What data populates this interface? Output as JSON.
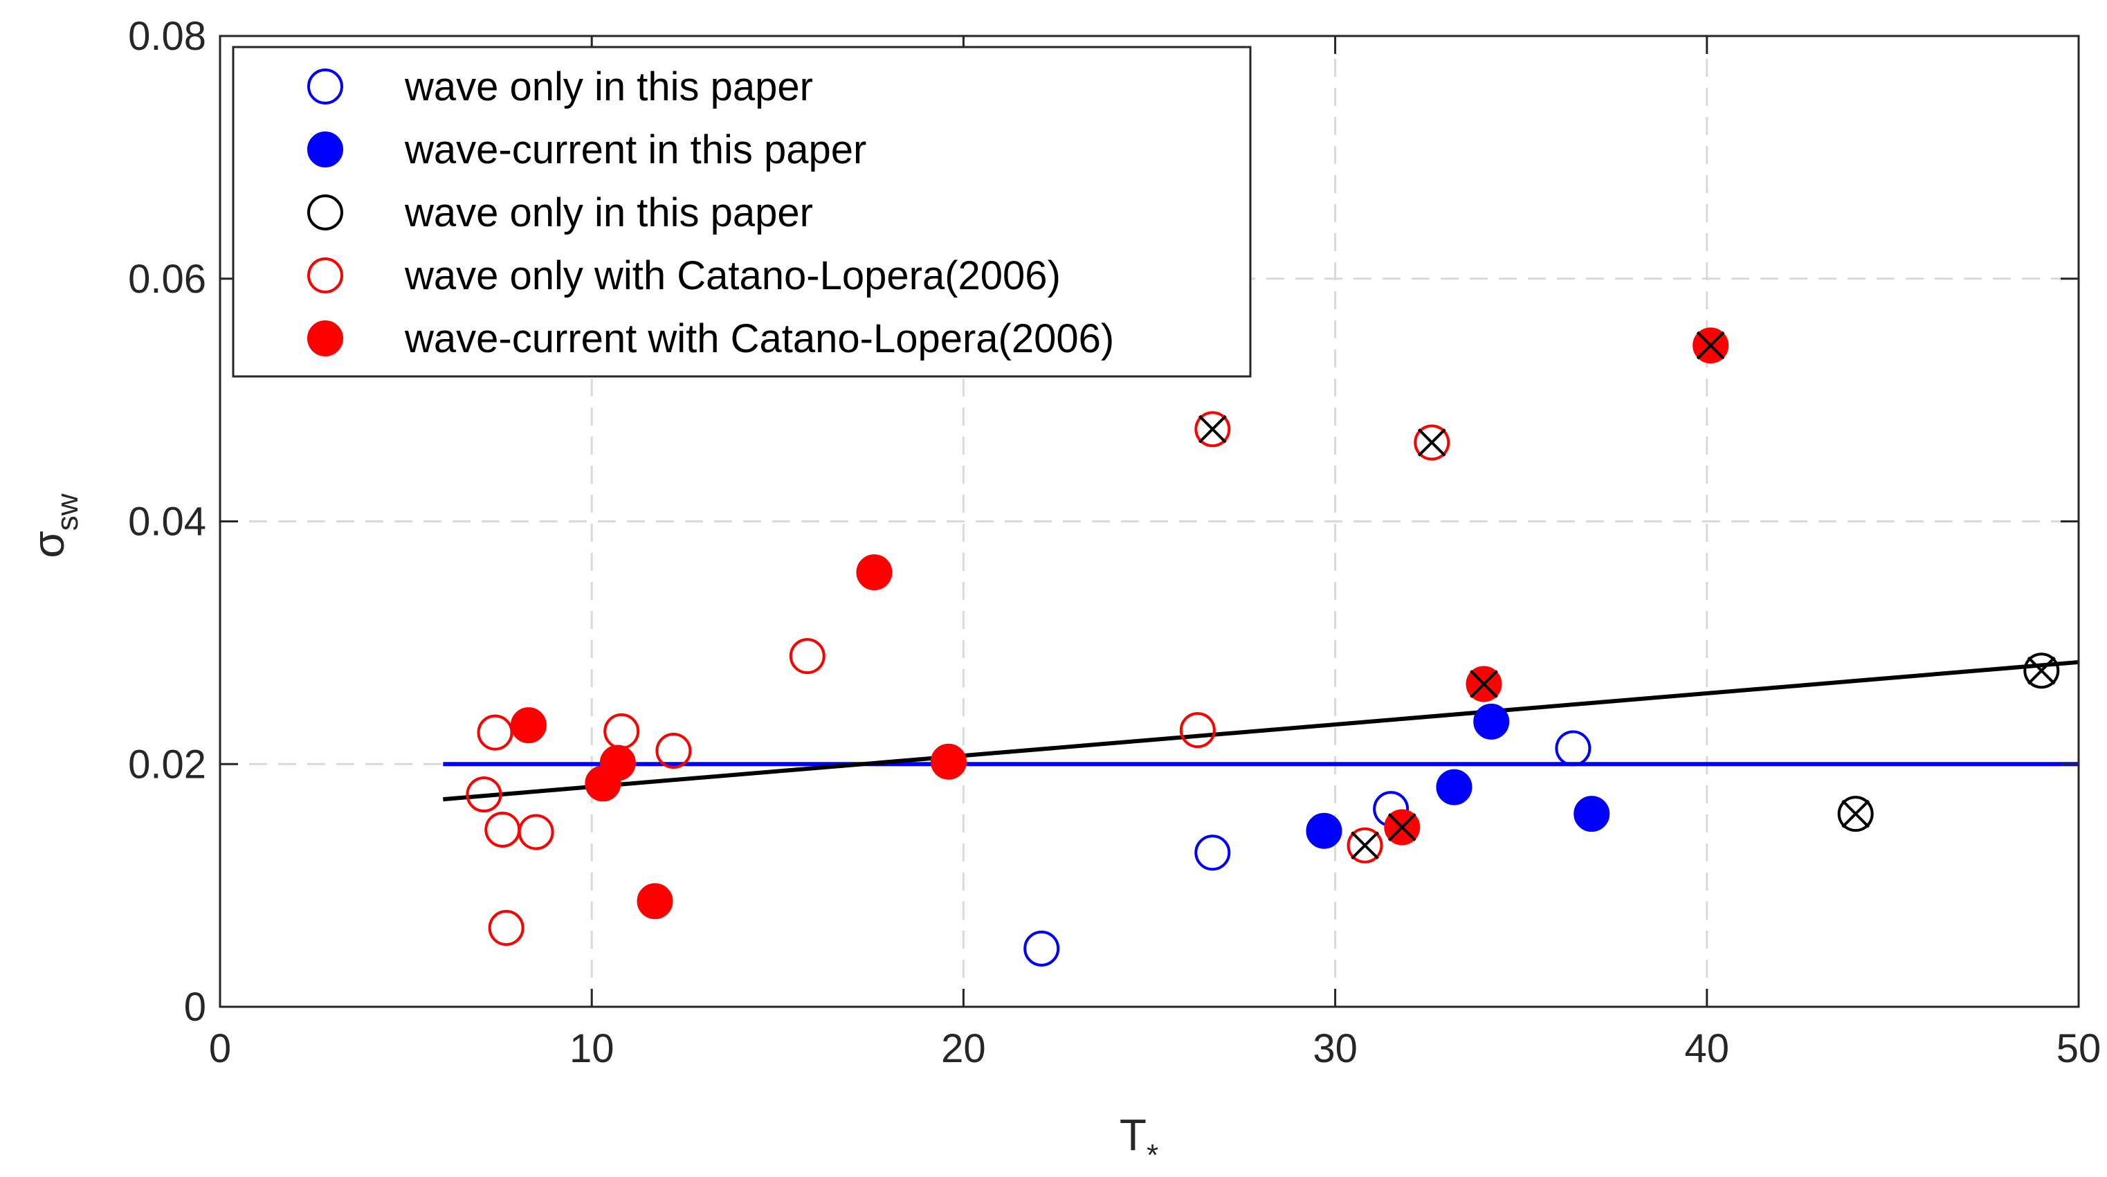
{
  "chart_data": {
    "type": "scatter",
    "xlabel": "T",
    "xlabel_sub": "*",
    "ylabel": "σ",
    "ylabel_sub": "sw",
    "xlim": [
      0,
      50
    ],
    "ylim": [
      0,
      0.08
    ],
    "xticks": [
      0,
      10,
      20,
      30,
      40,
      50
    ],
    "xtick_labels": [
      "0",
      "10",
      "20",
      "30",
      "40",
      "50"
    ],
    "yticks": [
      0,
      0.02,
      0.04,
      0.06,
      0.08
    ],
    "ytick_labels": [
      "0",
      "0.02",
      "0.04",
      "0.06",
      "0.08"
    ],
    "grid": true,
    "legend_position": "top-left",
    "series": [
      {
        "name": "wave only in this paper",
        "color": "#0000ff",
        "marker": "open-circle",
        "points": [
          [
            22.1,
            0.0048
          ],
          [
            26.7,
            0.0127
          ],
          [
            31.5,
            0.0163
          ],
          [
            36.4,
            0.0213
          ]
        ]
      },
      {
        "name": "wave-current in this paper",
        "color": "#0000ff",
        "marker": "filled-circle",
        "points": [
          [
            29.7,
            0.0145
          ],
          [
            33.2,
            0.0181
          ],
          [
            34.2,
            0.0235
          ],
          [
            36.9,
            0.0159
          ]
        ]
      },
      {
        "name": "wave only in this paper",
        "color": "#000000",
        "marker": "open-circle",
        "points": [
          [
            49.0,
            0.0277
          ],
          [
            44.0,
            0.0159
          ]
        ]
      },
      {
        "name": "wave only with Catano-Lopera(2006)",
        "color": "#ff0000",
        "marker": "open-circle",
        "points": [
          [
            7.1,
            0.0175
          ],
          [
            7.4,
            0.0226
          ],
          [
            7.6,
            0.0146
          ],
          [
            7.7,
            0.0065
          ],
          [
            8.5,
            0.0144
          ],
          [
            10.8,
            0.0227
          ],
          [
            12.2,
            0.0211
          ],
          [
            15.8,
            0.0289
          ],
          [
            26.3,
            0.0228
          ],
          [
            26.7,
            0.0476
          ],
          [
            30.8,
            0.0133
          ],
          [
            32.6,
            0.0465
          ]
        ]
      },
      {
        "name": "wave-current with Catano-Lopera(2006)",
        "color": "#ff0000",
        "marker": "filled-circle",
        "points": [
          [
            8.3,
            0.0232
          ],
          [
            10.3,
            0.0184
          ],
          [
            10.7,
            0.0201
          ],
          [
            11.7,
            0.0087
          ],
          [
            17.6,
            0.0358
          ],
          [
            19.6,
            0.0202
          ],
          [
            31.8,
            0.0148
          ],
          [
            34.0,
            0.0266
          ],
          [
            40.1,
            0.0545
          ]
        ]
      }
    ],
    "crossed_points": [
      [
        26.7,
        0.0476
      ],
      [
        30.8,
        0.0133
      ],
      [
        31.8,
        0.0148
      ],
      [
        32.6,
        0.0465
      ],
      [
        34.0,
        0.0266
      ],
      [
        40.1,
        0.0545
      ],
      [
        44.0,
        0.0159
      ],
      [
        49.0,
        0.0277
      ]
    ],
    "lines": [
      {
        "color": "#0000ff",
        "x": [
          6,
          50
        ],
        "y": [
          0.02,
          0.02
        ]
      },
      {
        "color": "#000000",
        "x": [
          6,
          50
        ],
        "y": [
          0.0171,
          0.0284
        ]
      }
    ]
  }
}
